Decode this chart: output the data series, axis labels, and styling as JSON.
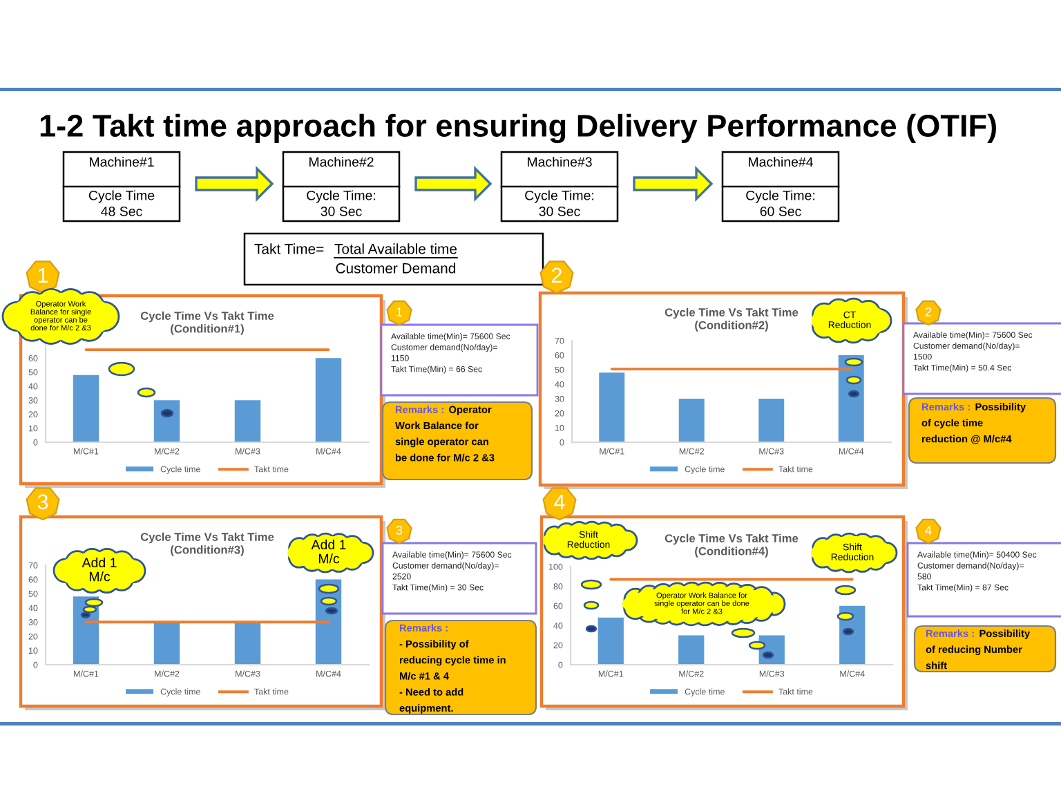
{
  "chart_data": [
    {
      "type": "other",
      "title": "1-2 Takt time approach for ensuring Delivery Performance (OTIF)",
      "annotations": [
        "Machine#1",
        "Cycle Time\n48 Sec",
        "Machine#2",
        "Cycle Time:\n30 Sec",
        "Machine#3",
        "Cycle Time:\n30 Sec",
        "Machine#4",
        "Cycle Time:\n60 Sec",
        "Takt Time=",
        "Total Available time",
        "Customer Demand"
      ]
    },
    {
      "type": "bar",
      "title": "Cycle Time Vs Takt Time\n(Condition#1)",
      "categories": [
        "M/C#1",
        "M/C#2",
        "M/C#3",
        "M/C#4"
      ],
      "series": [
        {
          "name": "Cycle time",
          "color": "#5b9bd5",
          "values": [
            48,
            30,
            30,
            60
          ]
        },
        {
          "name": "Takt time",
          "type": "line",
          "color": "#ed7d31",
          "values": [
            66,
            66,
            66,
            66
          ]
        }
      ],
      "ylim": [
        0,
        70
      ],
      "yticks": [
        0,
        10,
        20,
        30,
        40,
        50,
        60
      ],
      "legend": "bottom",
      "annotations": [
        "1",
        "1",
        "Available time(Min)= 75600 Sec\nCustomer demand(No/day)=\n1150\nTakt Time(Min) = 66 Sec",
        "Remarks :",
        "Operator\nWork Balance for\nsingle operator can\nbe done for M/c 2 &3",
        "Operator Work\nBalance for single\noperator can be\ndone for M/c 2 &3"
      ]
    },
    {
      "type": "bar",
      "title": "Cycle Time Vs Takt Time\n(Condition#2)",
      "categories": [
        "M/C#1",
        "M/C#2",
        "M/C#3",
        "M/C#4"
      ],
      "series": [
        {
          "name": "Cycle time",
          "color": "#5b9bd5",
          "values": [
            48,
            30,
            30,
            60
          ]
        },
        {
          "name": "Takt time",
          "type": "line",
          "color": "#ed7d31",
          "values": [
            50.4,
            50.4,
            50.4,
            50.4
          ]
        }
      ],
      "ylim": [
        0,
        70
      ],
      "yticks": [
        0,
        10,
        20,
        30,
        40,
        50,
        60,
        70
      ],
      "legend": "bottom",
      "annotations": [
        "2",
        "2",
        "Available time(Min)= 75600 Sec\nCustomer demand(No/day)=\n1500\nTakt Time(Min) = 50.4 Sec",
        "Remarks :",
        "Possibility\nof cycle time\nreduction @ M/c#4",
        "CT\nReduction"
      ]
    },
    {
      "type": "bar",
      "title": "Cycle Time Vs Takt Time\n(Condition#3)",
      "categories": [
        "M/C#1",
        "M/C#2",
        "M/C#3",
        "M/C#4"
      ],
      "series": [
        {
          "name": "Cycle time",
          "color": "#5b9bd5",
          "values": [
            48,
            30,
            30,
            60
          ]
        },
        {
          "name": "Takt time",
          "type": "line",
          "color": "#ed7d31",
          "values": [
            30,
            30,
            30,
            30
          ]
        }
      ],
      "ylim": [
        0,
        70
      ],
      "yticks": [
        0,
        10,
        20,
        30,
        40,
        50,
        60,
        70
      ],
      "legend": "bottom",
      "annotations": [
        "3",
        "3",
        "Available time(Min)= 75600 Sec\nCustomer demand(No/day)=\n2520\nTakt Time(Min) = 30 Sec",
        "Remarks :",
        "- Possibility of\nreducing cycle time in\nM/c #1 & 4\n- Need to add\nequipment.",
        "Add 1\nM/c",
        "Add 1\nM/c"
      ]
    },
    {
      "type": "bar",
      "title": "Cycle Time Vs Takt Time\n(Condition#4)",
      "categories": [
        "M/C#1",
        "M/C#2",
        "M/C#3",
        "M/C#4"
      ],
      "series": [
        {
          "name": "Cycle time",
          "color": "#5b9bd5",
          "values": [
            48,
            30,
            30,
            60
          ]
        },
        {
          "name": "Takt time",
          "type": "line",
          "color": "#ed7d31",
          "values": [
            87,
            87,
            87,
            87
          ]
        }
      ],
      "ylim": [
        0,
        100
      ],
      "yticks": [
        0,
        20,
        40,
        60,
        80,
        100
      ],
      "legend": "bottom",
      "annotations": [
        "4",
        "4",
        "Available time(Min)= 50400 Sec\nCustomer demand(No/day)=\n580\nTakt Time(Min) = 87 Sec",
        "Remarks :",
        "Possibility\nof reducing Number\nshift",
        "Shift\nReduction",
        "Shift\nReduction",
        "Operator Work Balance for\nsingle operator can be done\nfor M/c 2 &3"
      ]
    }
  ]
}
